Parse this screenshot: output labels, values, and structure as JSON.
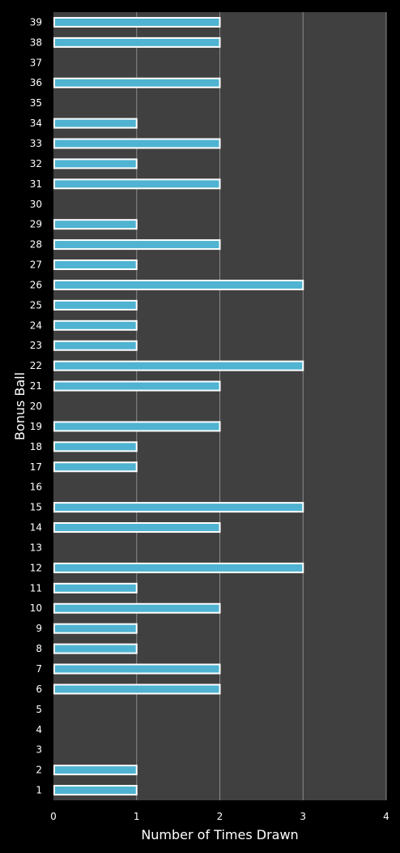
{
  "chart_data": {
    "type": "bar",
    "orientation": "horizontal",
    "title": "",
    "xlabel": "Number of Times Drawn",
    "ylabel": "Bonus Ball",
    "xlim": [
      0,
      4
    ],
    "xticks": [
      0,
      1,
      2,
      3,
      4
    ],
    "grid": true,
    "legend": "none",
    "categories": [
      "1",
      "2",
      "3",
      "4",
      "5",
      "6",
      "7",
      "8",
      "9",
      "10",
      "11",
      "12",
      "13",
      "14",
      "15",
      "16",
      "17",
      "18",
      "19",
      "20",
      "21",
      "22",
      "23",
      "24",
      "25",
      "26",
      "27",
      "28",
      "29",
      "30",
      "31",
      "32",
      "33",
      "34",
      "35",
      "36",
      "37",
      "38",
      "39"
    ],
    "values": [
      1,
      1,
      0,
      0,
      0,
      2,
      2,
      1,
      1,
      2,
      1,
      3,
      0,
      2,
      3,
      0,
      1,
      1,
      2,
      0,
      2,
      3,
      1,
      1,
      1,
      3,
      1,
      2,
      1,
      0,
      2,
      1,
      2,
      1,
      0,
      2,
      0,
      2,
      2
    ],
    "colors": {
      "background": "#000000",
      "plot_area": "#404040",
      "gridline": "#8a8a8a",
      "bar_fill": "#4fb3d1",
      "bar_edge": "#ffffff",
      "text": "#ffffff"
    }
  }
}
